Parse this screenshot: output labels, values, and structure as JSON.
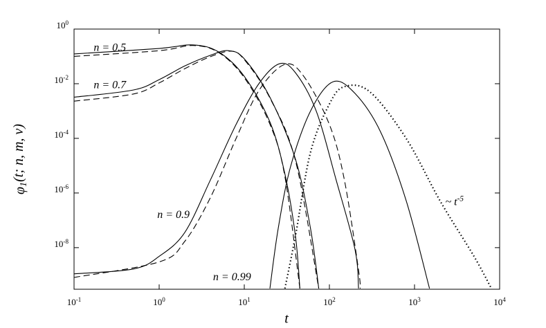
{
  "chart_data": {
    "type": "line",
    "xlabel": "t",
    "ylabel": "φ_1(t; n, m, ν)",
    "xscale": "log",
    "yscale": "log",
    "xlim": [
      0.1,
      10000
    ],
    "ylim": [
      3e-10,
      1
    ],
    "xticks": [
      {
        "value": 0.1,
        "label": "10^-1"
      },
      {
        "value": 1,
        "label": "10^0"
      },
      {
        "value": 10,
        "label": "10^1"
      },
      {
        "value": 100,
        "label": "10^2"
      },
      {
        "value": 1000,
        "label": "10^3"
      },
      {
        "value": 10000,
        "label": "10^4"
      }
    ],
    "yticks": [
      {
        "value": 1,
        "label": "10^0"
      },
      {
        "value": 0.01,
        "label": "10^-2"
      },
      {
        "value": 0.0001,
        "label": "10^-4"
      },
      {
        "value": 1e-06,
        "label": "10^-6"
      },
      {
        "value": 1e-08,
        "label": "10^-8"
      }
    ],
    "annotations": [
      {
        "text": "n = 0.5",
        "x": 0.17,
        "y": 0.2
      },
      {
        "text": "n = 0.7",
        "x": 0.17,
        "y": 0.0085
      },
      {
        "text": "n = 0.9",
        "x": 0.95,
        "y": 1.5e-07
      },
      {
        "text": "n = 0.99",
        "x": 4.3,
        "y": 8e-10
      },
      {
        "text": "~ t^-5",
        "x": 2300,
        "y": 4.5e-07
      }
    ],
    "series": [
      {
        "color": "#000000",
        "dash": "solid",
        "x": [
          0.1,
          1,
          2.5,
          5,
          10,
          20,
          30,
          40,
          45
        ],
        "values": [
          0.123,
          0.195,
          0.263,
          0.145,
          0.0186,
          0.000398,
          5e-06,
          2.5e-08,
          3.2e-10
        ]
      },
      {
        "color": "#000000",
        "dash": "dashed",
        "x": [
          0.1,
          1,
          2.5,
          5,
          10,
          20,
          30,
          45
        ],
        "values": [
          0.1,
          0.162,
          0.251,
          0.138,
          0.0166,
          0.00033,
          4e-06,
          3.2e-10
        ]
      },
      {
        "color": "#000000",
        "dash": "solid",
        "x": [
          0.1,
          0.5,
          1,
          2,
          4,
          6.5,
          10,
          20,
          40,
          60,
          75
        ],
        "values": [
          0.0032,
          0.0059,
          0.0141,
          0.0447,
          0.11,
          0.162,
          0.0813,
          0.0032,
          1.7e-05,
          5e-08,
          3.2e-10
        ]
      },
      {
        "color": "#000000",
        "dash": "dashed",
        "x": [
          0.1,
          0.5,
          1,
          2,
          4,
          7,
          10,
          20,
          40,
          75
        ],
        "values": [
          0.0023,
          0.0042,
          0.0107,
          0.0355,
          0.098,
          0.155,
          0.076,
          0.003,
          1.5e-05,
          3.2e-10
        ]
      },
      {
        "color": "#000000",
        "dash": "solid",
        "x": [
          0.1,
          0.5,
          1,
          2,
          4,
          8,
          15,
          26,
          40,
          70,
          120,
          200,
          220
        ],
        "values": [
          1.1e-09,
          1.66e-09,
          4.8e-09,
          3.6e-08,
          3e-06,
          0.00032,
          0.0105,
          0.054,
          0.025,
          0.001,
          3e-06,
          8.5e-09,
          3.2e-10
        ]
      },
      {
        "color": "#000000",
        "dash": "dashed",
        "x": [
          0.1,
          1,
          2,
          4,
          8,
          15,
          30,
          50,
          100,
          150,
          220,
          230
        ],
        "values": [
          8.1e-10,
          3e-09,
          1.7e-08,
          6.8e-07,
          9.8e-05,
          0.0059,
          0.051,
          0.0186,
          0.00032,
          3e-06,
          1.5e-09,
          3.2e-10
        ]
      },
      {
        "color": "#000000",
        "dash": "solid",
        "x": [
          20,
          25,
          35,
          60,
          110,
          200,
          400,
          800,
          1500
        ],
        "values": [
          3.2e-10,
          4.9e-08,
          9.3e-06,
          0.001,
          0.0117,
          0.0044,
          0.00017,
          5.1e-07,
          3.2e-10
        ]
      },
      {
        "color": "#000000",
        "dash": "dotted",
        "x": [
          30,
          40,
          60,
          100,
          150,
          300,
          800,
          2000,
          5000,
          8000
        ],
        "values": [
          3.2e-10,
          2.8e-08,
          3.1e-05,
          0.0018,
          0.0078,
          0.005,
          9.8e-05,
          5.1e-07,
          4.8e-09,
          3.2e-10
        ]
      }
    ]
  }
}
